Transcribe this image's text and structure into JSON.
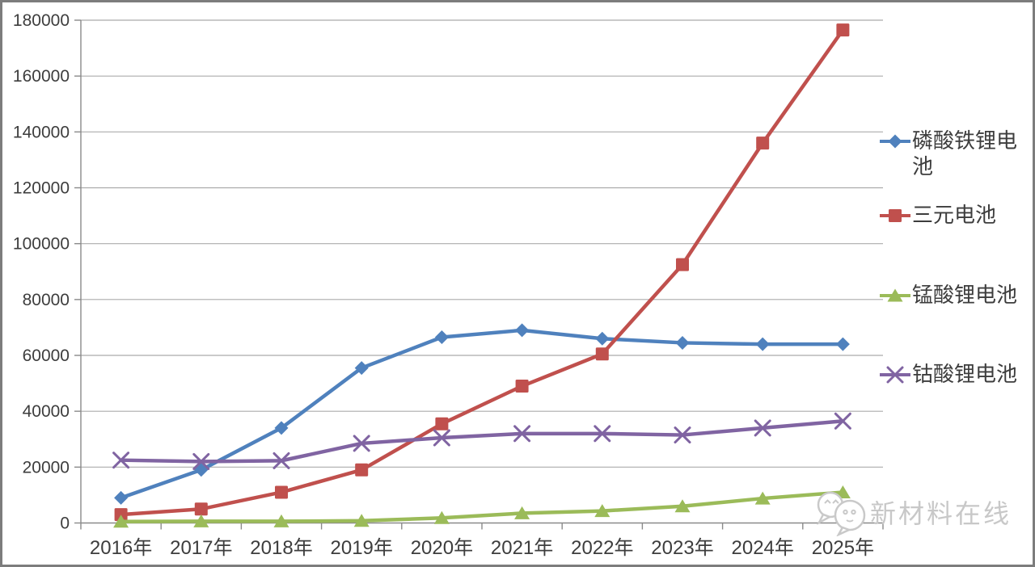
{
  "chart_data": {
    "type": "line",
    "title": "",
    "xlabel": "",
    "ylabel": "",
    "categories": [
      "2016年",
      "2017年",
      "2018年",
      "2019年",
      "2020年",
      "2021年",
      "2022年",
      "2023年",
      "2024年",
      "2025年"
    ],
    "series": [
      {
        "name": "磷酸铁锂电池",
        "marker": "diamond",
        "color": "#4F81BD",
        "values": [
          9000,
          19000,
          34000,
          55500,
          66500,
          69000,
          66000,
          64500,
          64000,
          64000
        ]
      },
      {
        "name": "三元电池",
        "marker": "square",
        "color": "#C0504D",
        "values": [
          3000,
          5000,
          11000,
          19000,
          35500,
          49000,
          60500,
          92500,
          136000,
          176500
        ]
      },
      {
        "name": "锰酸锂电池",
        "marker": "triangle",
        "color": "#9BBB59",
        "values": [
          500,
          600,
          600,
          800,
          1800,
          3500,
          4300,
          6000,
          8800,
          11000
        ]
      },
      {
        "name": "钴酸锂电池",
        "marker": "x",
        "color": "#8064A2",
        "values": [
          22500,
          22000,
          22300,
          28500,
          30500,
          32000,
          32000,
          31500,
          34000,
          36500
        ]
      }
    ],
    "ylim": [
      0,
      180000
    ],
    "ytick_step": 20000,
    "ytick_labels": [
      "0",
      "20000",
      "40000",
      "60000",
      "80000",
      "100000",
      "120000",
      "140000",
      "160000",
      "180000"
    ],
    "grid": true,
    "legend_position": "right"
  },
  "colors": {
    "gridline": "#ababab",
    "axis": "#8a8a8a",
    "text": "#3d3d3d",
    "frame_border": "#7d7d7d",
    "watermark": "#c8c8c8"
  },
  "watermark": {
    "text": "新材料在线"
  }
}
